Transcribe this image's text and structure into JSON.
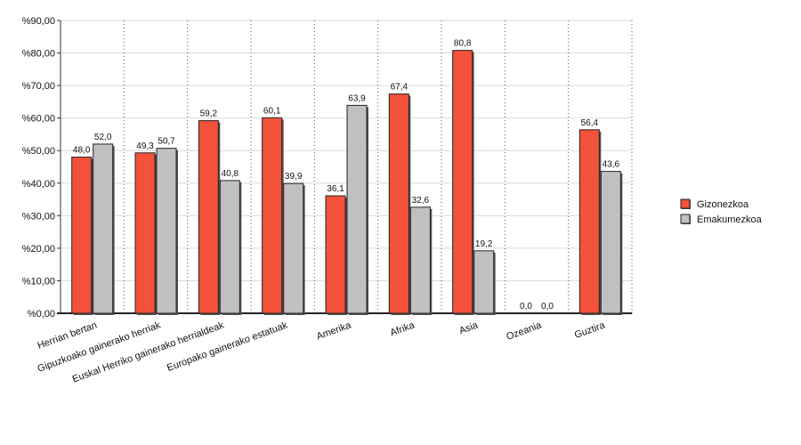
{
  "chart_data": {
    "type": "bar",
    "title": "",
    "xlabel": "",
    "ylabel": "",
    "ylim": [
      0,
      90
    ],
    "y_tick_step": 10,
    "y_tick_labels": [
      "%0,00",
      "%10,00",
      "%20,00",
      "%30,00",
      "%40,00",
      "%50,00",
      "%60,00",
      "%70,00",
      "%80,00",
      "%90,00"
    ],
    "categories": [
      "Herrian bertan",
      "Gipuzkoako gainerako herriak",
      "Euskal Herriko gainerako herrialdeak",
      "Europako gainerako estatuak",
      "Amerika",
      "Afrika",
      "Asia",
      "Ozeania",
      "Guztira"
    ],
    "series": [
      {
        "name": "Gizonezkoa",
        "color": "#f4513a",
        "values": [
          48.0,
          49.3,
          59.2,
          60.1,
          36.1,
          67.4,
          80.8,
          0.0,
          56.4
        ],
        "labels": [
          "48,0",
          "49,3",
          "59,2",
          "60,1",
          "36,1",
          "67,4",
          "80,8",
          "0,0",
          "56,4"
        ]
      },
      {
        "name": "Emakumezkoa",
        "color": "#c0c0c0",
        "values": [
          52.0,
          50.7,
          40.8,
          39.9,
          63.9,
          32.6,
          19.2,
          0.0,
          43.6
        ],
        "labels": [
          "52,0",
          "50,7",
          "40,8",
          "39,9",
          "63,9",
          "32,6",
          "19,2",
          "0,0",
          "43,6"
        ]
      }
    ],
    "grid": "horizontal solid, vertical dotted between categories",
    "legend_position": "right"
  }
}
